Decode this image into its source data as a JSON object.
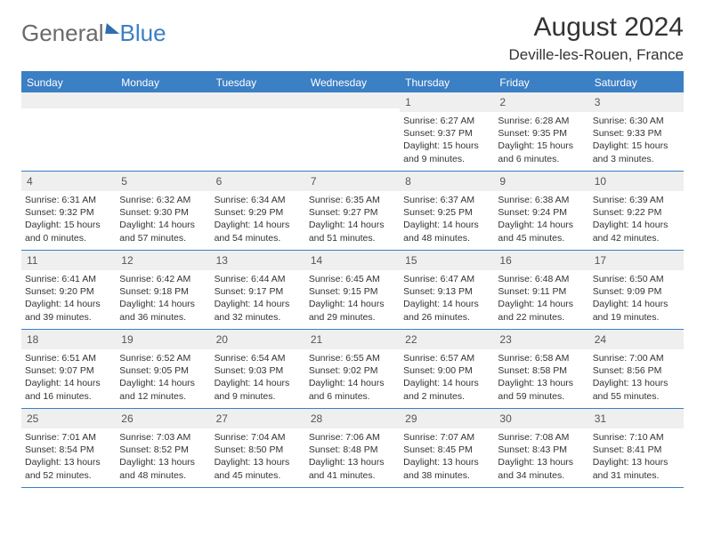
{
  "brand": {
    "part1": "General",
    "part2": "Blue"
  },
  "title": "August 2024",
  "location": "Deville-les-Rouen, France",
  "colors": {
    "header_bg": "#3b7fc4",
    "header_text": "#ffffff",
    "daynum_bg": "#efefef",
    "border": "#3b7fc4",
    "body_text": "#333333"
  },
  "typography": {
    "title_fontsize": 30,
    "location_fontsize": 17,
    "dow_fontsize": 12,
    "daynum_fontsize": 12,
    "info_fontsize": 10.5
  },
  "layout": {
    "columns": 7,
    "rows": 5,
    "first_day_column_index": 4
  },
  "days_of_week": [
    "Sunday",
    "Monday",
    "Tuesday",
    "Wednesday",
    "Thursday",
    "Friday",
    "Saturday"
  ],
  "days": [
    {
      "n": 1,
      "sunrise": "6:27 AM",
      "sunset": "9:37 PM",
      "daylight": "15 hours and 9 minutes."
    },
    {
      "n": 2,
      "sunrise": "6:28 AM",
      "sunset": "9:35 PM",
      "daylight": "15 hours and 6 minutes."
    },
    {
      "n": 3,
      "sunrise": "6:30 AM",
      "sunset": "9:33 PM",
      "daylight": "15 hours and 3 minutes."
    },
    {
      "n": 4,
      "sunrise": "6:31 AM",
      "sunset": "9:32 PM",
      "daylight": "15 hours and 0 minutes."
    },
    {
      "n": 5,
      "sunrise": "6:32 AM",
      "sunset": "9:30 PM",
      "daylight": "14 hours and 57 minutes."
    },
    {
      "n": 6,
      "sunrise": "6:34 AM",
      "sunset": "9:29 PM",
      "daylight": "14 hours and 54 minutes."
    },
    {
      "n": 7,
      "sunrise": "6:35 AM",
      "sunset": "9:27 PM",
      "daylight": "14 hours and 51 minutes."
    },
    {
      "n": 8,
      "sunrise": "6:37 AM",
      "sunset": "9:25 PM",
      "daylight": "14 hours and 48 minutes."
    },
    {
      "n": 9,
      "sunrise": "6:38 AM",
      "sunset": "9:24 PM",
      "daylight": "14 hours and 45 minutes."
    },
    {
      "n": 10,
      "sunrise": "6:39 AM",
      "sunset": "9:22 PM",
      "daylight": "14 hours and 42 minutes."
    },
    {
      "n": 11,
      "sunrise": "6:41 AM",
      "sunset": "9:20 PM",
      "daylight": "14 hours and 39 minutes."
    },
    {
      "n": 12,
      "sunrise": "6:42 AM",
      "sunset": "9:18 PM",
      "daylight": "14 hours and 36 minutes."
    },
    {
      "n": 13,
      "sunrise": "6:44 AM",
      "sunset": "9:17 PM",
      "daylight": "14 hours and 32 minutes."
    },
    {
      "n": 14,
      "sunrise": "6:45 AM",
      "sunset": "9:15 PM",
      "daylight": "14 hours and 29 minutes."
    },
    {
      "n": 15,
      "sunrise": "6:47 AM",
      "sunset": "9:13 PM",
      "daylight": "14 hours and 26 minutes."
    },
    {
      "n": 16,
      "sunrise": "6:48 AM",
      "sunset": "9:11 PM",
      "daylight": "14 hours and 22 minutes."
    },
    {
      "n": 17,
      "sunrise": "6:50 AM",
      "sunset": "9:09 PM",
      "daylight": "14 hours and 19 minutes."
    },
    {
      "n": 18,
      "sunrise": "6:51 AM",
      "sunset": "9:07 PM",
      "daylight": "14 hours and 16 minutes."
    },
    {
      "n": 19,
      "sunrise": "6:52 AM",
      "sunset": "9:05 PM",
      "daylight": "14 hours and 12 minutes."
    },
    {
      "n": 20,
      "sunrise": "6:54 AM",
      "sunset": "9:03 PM",
      "daylight": "14 hours and 9 minutes."
    },
    {
      "n": 21,
      "sunrise": "6:55 AM",
      "sunset": "9:02 PM",
      "daylight": "14 hours and 6 minutes."
    },
    {
      "n": 22,
      "sunrise": "6:57 AM",
      "sunset": "9:00 PM",
      "daylight": "14 hours and 2 minutes."
    },
    {
      "n": 23,
      "sunrise": "6:58 AM",
      "sunset": "8:58 PM",
      "daylight": "13 hours and 59 minutes."
    },
    {
      "n": 24,
      "sunrise": "7:00 AM",
      "sunset": "8:56 PM",
      "daylight": "13 hours and 55 minutes."
    },
    {
      "n": 25,
      "sunrise": "7:01 AM",
      "sunset": "8:54 PM",
      "daylight": "13 hours and 52 minutes."
    },
    {
      "n": 26,
      "sunrise": "7:03 AM",
      "sunset": "8:52 PM",
      "daylight": "13 hours and 48 minutes."
    },
    {
      "n": 27,
      "sunrise": "7:04 AM",
      "sunset": "8:50 PM",
      "daylight": "13 hours and 45 minutes."
    },
    {
      "n": 28,
      "sunrise": "7:06 AM",
      "sunset": "8:48 PM",
      "daylight": "13 hours and 41 minutes."
    },
    {
      "n": 29,
      "sunrise": "7:07 AM",
      "sunset": "8:45 PM",
      "daylight": "13 hours and 38 minutes."
    },
    {
      "n": 30,
      "sunrise": "7:08 AM",
      "sunset": "8:43 PM",
      "daylight": "13 hours and 34 minutes."
    },
    {
      "n": 31,
      "sunrise": "7:10 AM",
      "sunset": "8:41 PM",
      "daylight": "13 hours and 31 minutes."
    }
  ],
  "labels": {
    "sunrise": "Sunrise:",
    "sunset": "Sunset:",
    "daylight": "Daylight:"
  }
}
